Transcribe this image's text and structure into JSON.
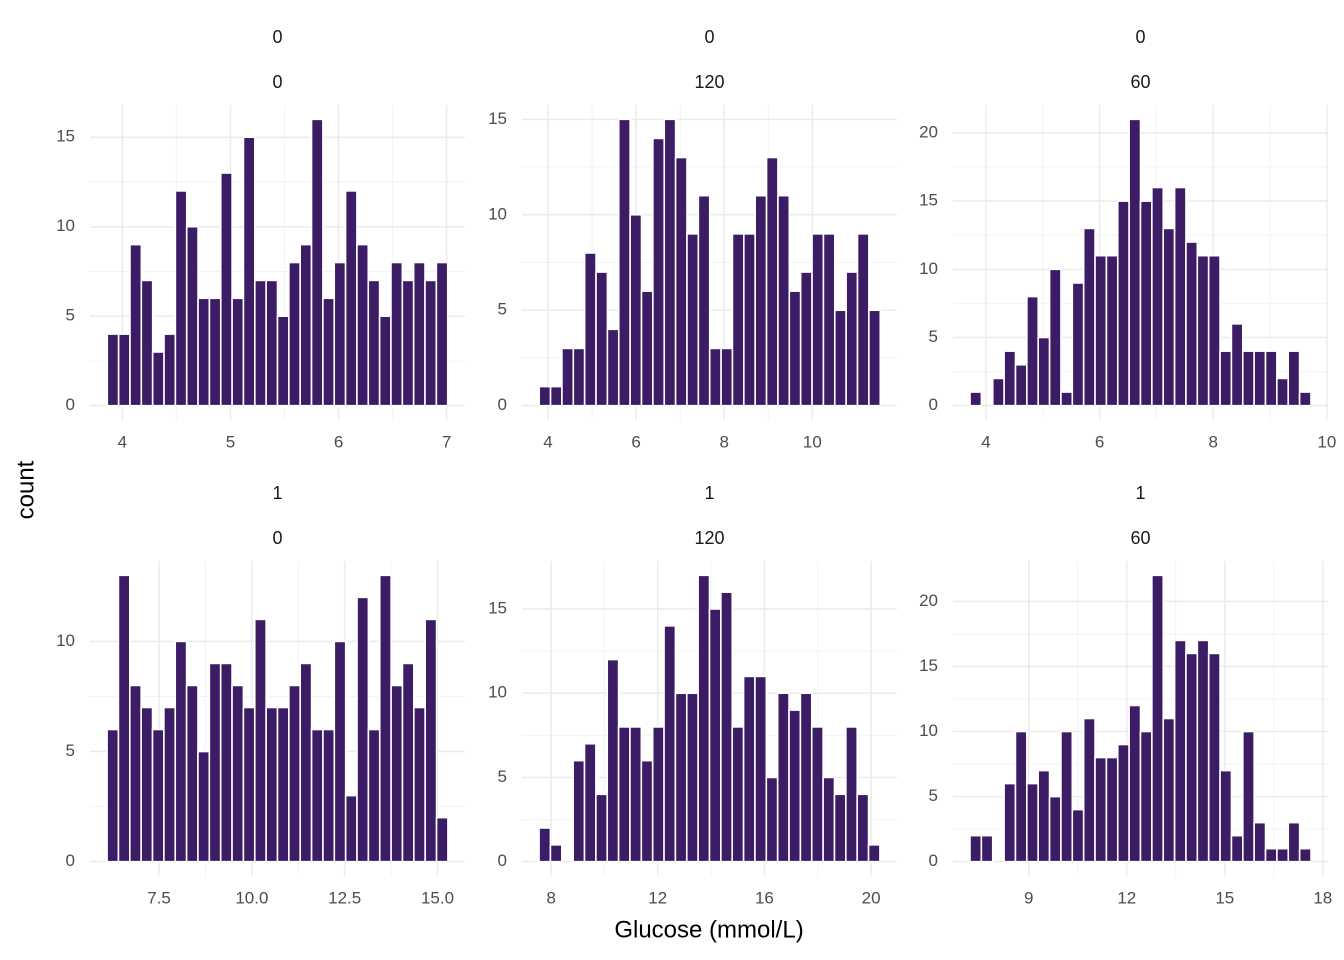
{
  "x_label": "Glucose (mmol/L)",
  "y_label": "count",
  "chart_data": [
    {
      "type": "histogram",
      "strip": [
        "0",
        "0"
      ],
      "color": "#3b1c65",
      "bins": [
        3.86,
        3.965,
        4.07,
        4.175,
        4.28,
        4.385,
        4.49,
        4.595,
        4.7,
        4.805,
        4.91,
        5.015,
        5.12,
        5.225,
        5.33,
        5.435,
        5.54,
        5.645,
        5.75,
        5.855,
        5.96,
        6.065,
        6.17,
        6.275,
        6.38,
        6.485,
        6.59,
        6.695,
        6.8,
        6.905,
        7.01
      ],
      "counts": [
        4,
        4,
        9,
        7,
        3,
        4,
        12,
        10,
        6,
        6,
        13,
        6,
        15,
        7,
        7,
        5,
        8,
        9,
        16,
        6,
        8,
        12,
        9,
        7,
        5,
        8,
        7,
        8,
        7,
        8
      ],
      "xlim": [
        3.7,
        7.17
      ],
      "xticks": [
        4,
        5,
        6,
        7
      ],
      "ylim": [
        -0.8,
        16.8
      ],
      "yticks": [
        0,
        5,
        10,
        15
      ],
      "grid": true
    },
    {
      "type": "histogram",
      "strip": [
        "0",
        "120"
      ],
      "color": "#3b1c65",
      "bins": [
        3.8,
        4.058,
        4.316,
        4.574,
        4.832,
        5.09,
        5.348,
        5.606,
        5.864,
        6.122,
        6.38,
        6.638,
        6.896,
        7.154,
        7.412,
        7.67,
        7.928,
        8.186,
        8.444,
        8.702,
        8.96,
        9.218,
        9.476,
        9.734,
        9.992,
        10.25,
        10.508,
        10.766,
        11.024,
        11.282,
        11.54
      ],
      "counts": [
        1,
        1,
        3,
        3,
        8,
        7,
        4,
        15,
        10,
        6,
        14,
        15,
        13,
        9,
        11,
        3,
        3,
        9,
        9,
        11,
        13,
        11,
        6,
        7,
        9,
        9,
        5,
        7,
        9,
        5
      ],
      "xlim": [
        3.41,
        11.92
      ],
      "xticks": [
        4,
        6,
        8,
        10
      ],
      "ylim": [
        -0.75,
        15.75
      ],
      "yticks": [
        0,
        5,
        10,
        15
      ],
      "grid": true
    },
    {
      "type": "histogram",
      "strip": [
        "0",
        "60"
      ],
      "color": "#3b1c65",
      "bins": [
        3.72,
        3.92,
        4.12,
        4.32,
        4.52,
        4.72,
        4.92,
        5.12,
        5.32,
        5.52,
        5.72,
        5.92,
        6.12,
        6.32,
        6.52,
        6.72,
        6.92,
        7.12,
        7.32,
        7.52,
        7.72,
        7.92,
        8.12,
        8.32,
        8.52,
        8.72,
        8.92,
        9.12,
        9.32,
        9.52,
        9.72
      ],
      "counts": [
        1,
        0,
        2,
        4,
        3,
        8,
        5,
        10,
        1,
        9,
        13,
        11,
        11,
        15,
        21,
        15,
        16,
        13,
        16,
        12,
        11,
        11,
        4,
        6,
        4,
        4,
        4,
        2,
        4,
        1
      ],
      "xlim": [
        3.42,
        10.02
      ],
      "xticks": [
        4,
        6,
        8,
        10
      ],
      "ylim": [
        -1.05,
        22.05
      ],
      "yticks": [
        0,
        5,
        10,
        15,
        20
      ],
      "grid": true
    },
    {
      "type": "histogram",
      "strip": [
        "1",
        "0"
      ],
      "color": "#3b1c65",
      "bins": [
        6.1,
        6.406,
        6.712,
        7.018,
        7.324,
        7.63,
        7.936,
        8.242,
        8.548,
        8.854,
        9.16,
        9.466,
        9.772,
        10.078,
        10.384,
        10.69,
        10.996,
        11.302,
        11.608,
        11.914,
        12.22,
        12.526,
        12.832,
        13.138,
        13.444,
        13.75,
        14.056,
        14.362,
        14.668,
        14.974,
        15.28
      ],
      "counts": [
        6,
        13,
        8,
        7,
        6,
        7,
        10,
        8,
        5,
        9,
        9,
        8,
        7,
        11,
        7,
        7,
        8,
        9,
        6,
        6,
        10,
        3,
        12,
        6,
        13,
        8,
        9,
        7,
        11,
        2
      ],
      "xlim": [
        5.64,
        15.74
      ],
      "xticks": [
        7.5,
        {
          "value": 10,
          "label": "10.0"
        },
        12.5,
        {
          "value": 15,
          "label": "15.0"
        }
      ],
      "ylim": [
        -0.65,
        13.65
      ],
      "yticks": [
        0,
        5,
        10
      ],
      "grid": true
    },
    {
      "type": "histogram",
      "strip": [
        "1",
        "120"
      ],
      "color": "#3b1c65",
      "bins": [
        7.55,
        7.976,
        8.402,
        8.828,
        9.254,
        9.68,
        10.106,
        10.532,
        10.958,
        11.384,
        11.81,
        12.236,
        12.662,
        13.088,
        13.514,
        13.94,
        14.366,
        14.792,
        15.218,
        15.644,
        16.07,
        16.496,
        16.922,
        17.348,
        17.774,
        18.2,
        18.626,
        19.052,
        19.478,
        19.904,
        20.33
      ],
      "counts": [
        2,
        1,
        0,
        6,
        7,
        4,
        12,
        8,
        8,
        6,
        8,
        14,
        10,
        10,
        17,
        15,
        16,
        8,
        11,
        11,
        5,
        10,
        9,
        10,
        8,
        5,
        4,
        8,
        4,
        1
      ],
      "xlim": [
        6.91,
        20.97
      ],
      "xticks": [
        8,
        12,
        16,
        20
      ],
      "ylim": [
        -0.85,
        17.85
      ],
      "yticks": [
        0,
        5,
        10,
        15
      ],
      "grid": true
    },
    {
      "type": "histogram",
      "strip": [
        "1",
        "60"
      ],
      "color": "#3b1c65",
      "bins": [
        7.2,
        7.548,
        7.896,
        8.244,
        8.592,
        8.94,
        9.288,
        9.636,
        9.984,
        10.332,
        10.68,
        11.028,
        11.376,
        11.724,
        12.072,
        12.42,
        12.768,
        13.116,
        13.464,
        13.812,
        14.16,
        14.508,
        14.856,
        15.204,
        15.552,
        15.9,
        16.248,
        16.596,
        16.944,
        17.292,
        17.64
      ],
      "counts": [
        2,
        2,
        0,
        6,
        10,
        6,
        7,
        5,
        10,
        4,
        11,
        8,
        8,
        9,
        12,
        10,
        22,
        11,
        17,
        16,
        17,
        16,
        7,
        2,
        10,
        3,
        1,
        1,
        3,
        1
      ],
      "xlim": [
        6.68,
        18.16
      ],
      "xticks": [
        9,
        12,
        15,
        18
      ],
      "ylim": [
        -1.1,
        23.1
      ],
      "yticks": [
        0,
        5,
        10,
        15,
        20
      ],
      "grid": true
    }
  ]
}
